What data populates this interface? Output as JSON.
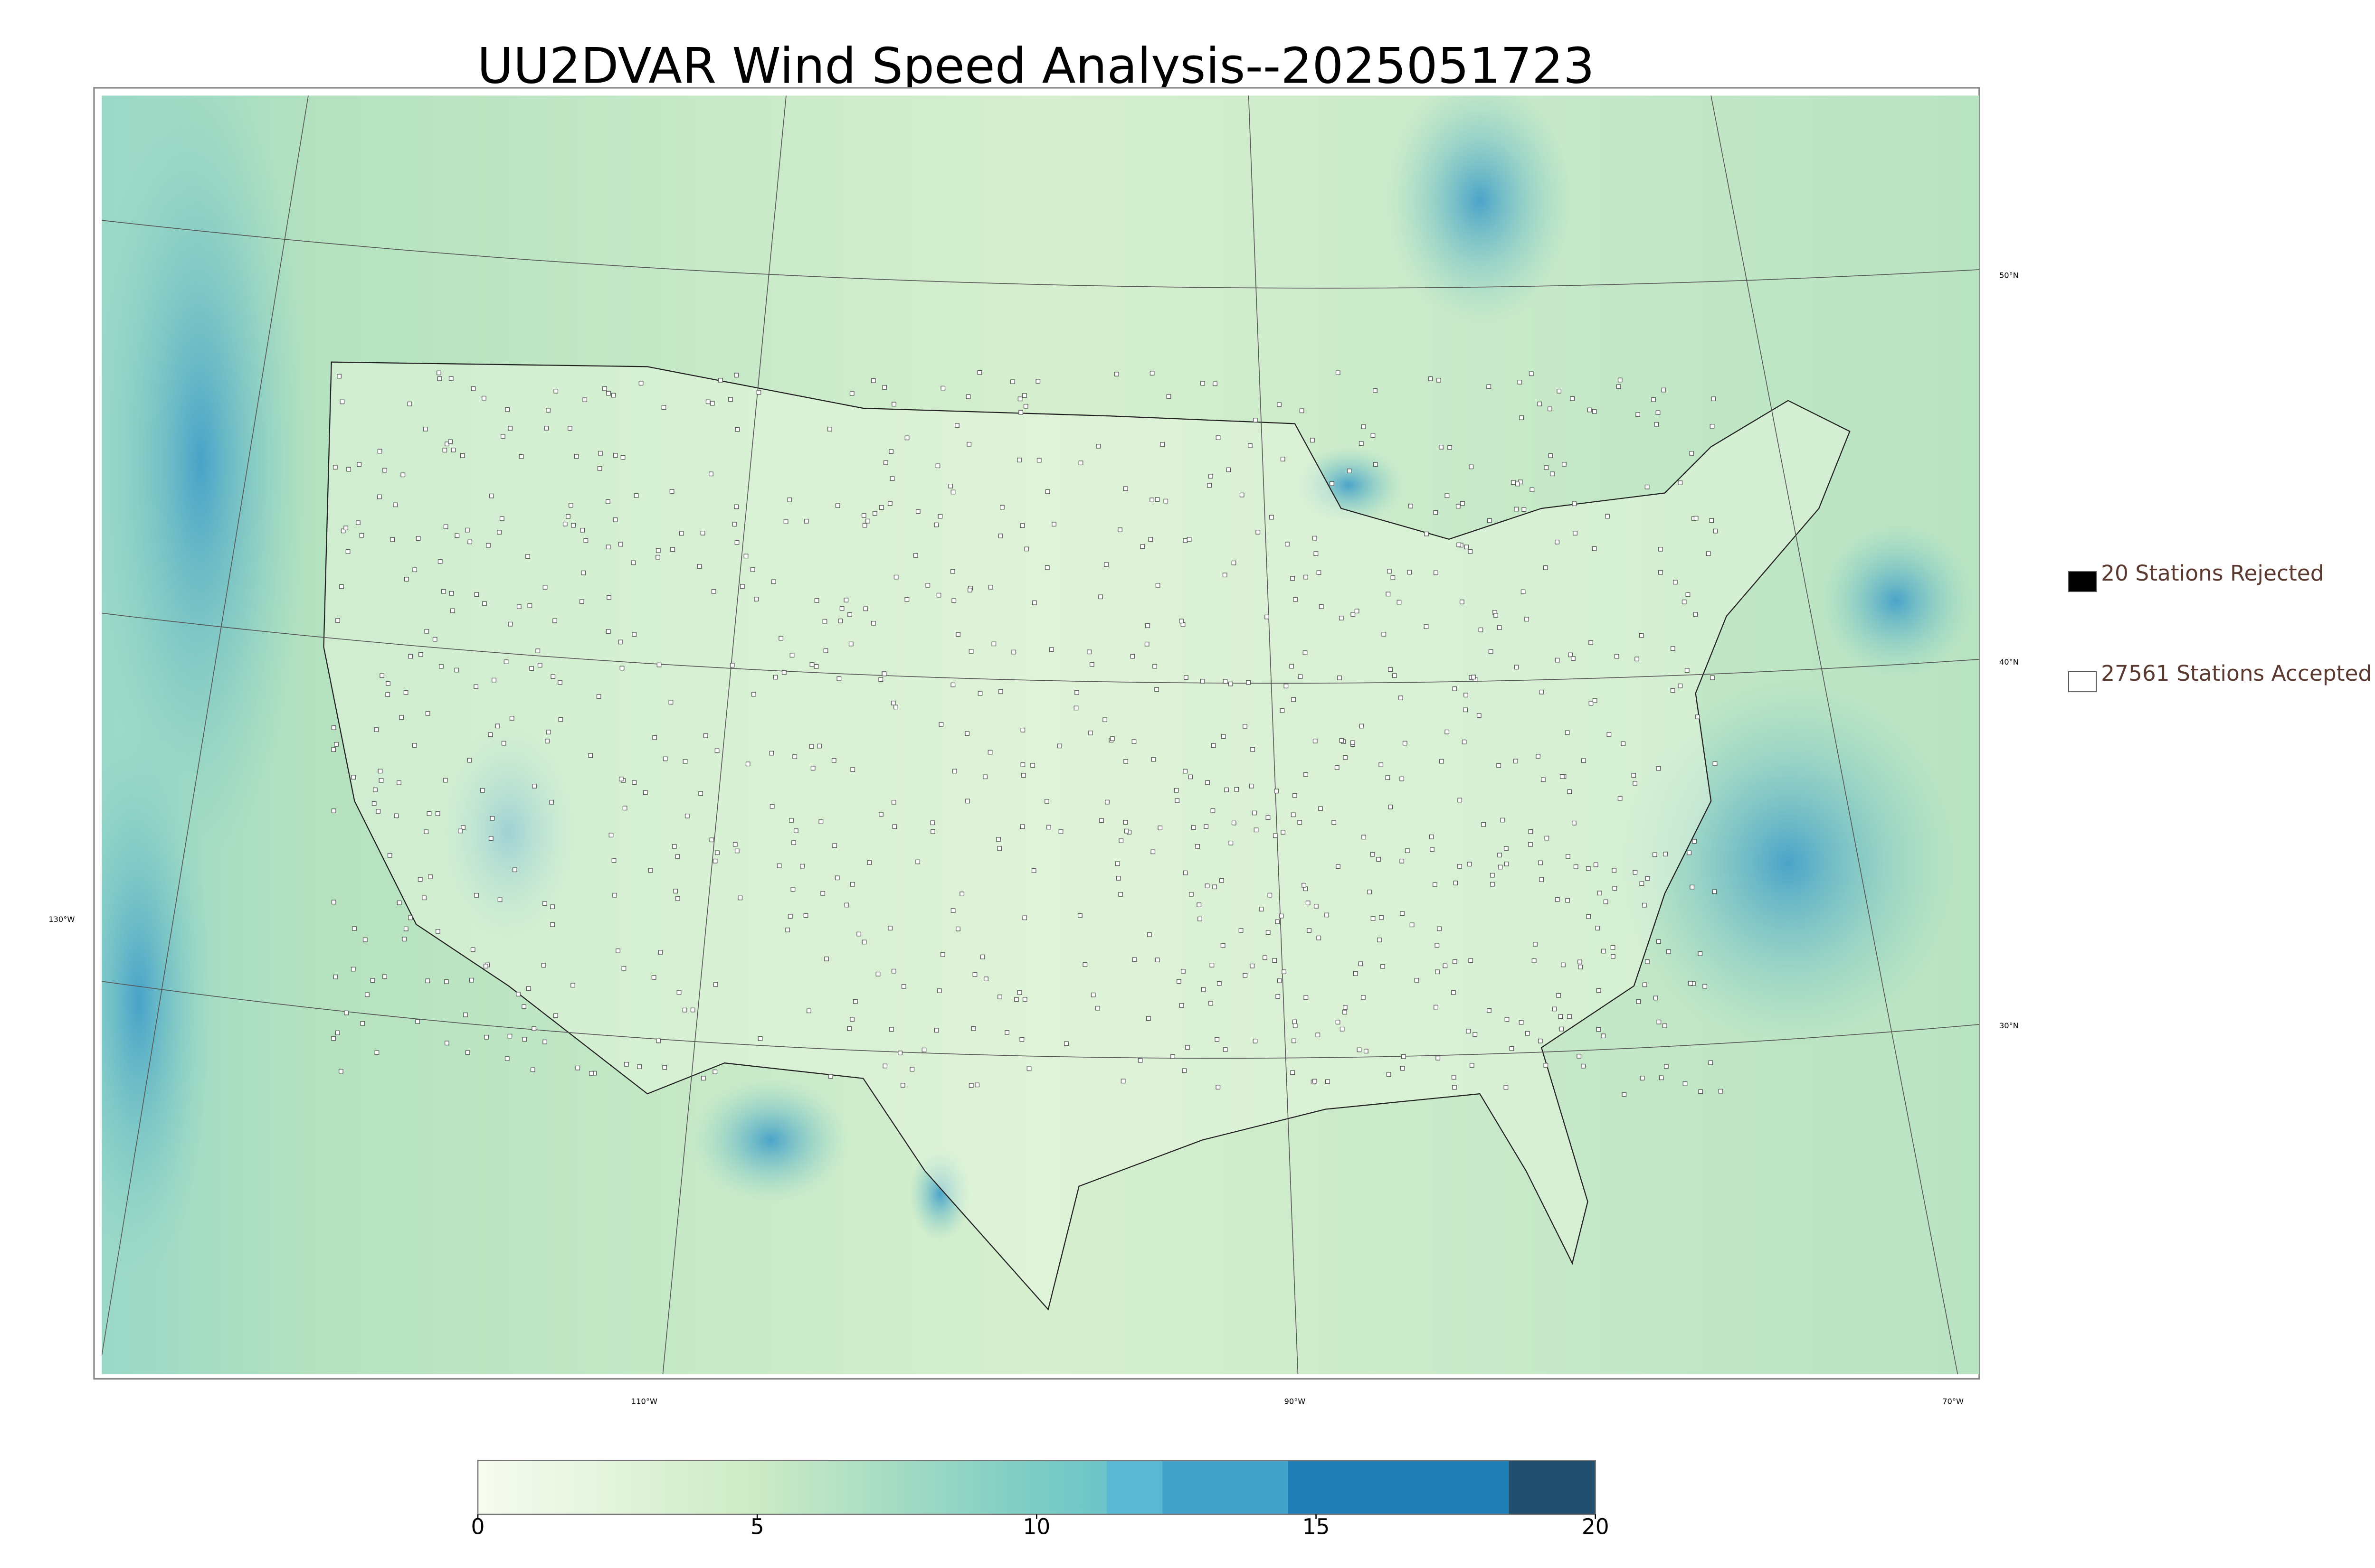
{
  "title": "UU2DVAR Wind Speed Analysis--2025051723",
  "legend": [
    {
      "label": "20 Stations Rejected",
      "fill": "#000000"
    },
    {
      "label": "27561 Stations Accepted",
      "fill": "#ffffff"
    }
  ],
  "graticule_labels": {
    "latitudes": [
      "50°N",
      "40°N",
      "30°N"
    ],
    "longitudes": [
      "130°W",
      "110°W",
      "90°W",
      "70°W"
    ]
  },
  "colorbar": {
    "lim": [
      0,
      20
    ],
    "ticks": [
      0,
      5,
      10,
      15,
      20
    ],
    "gradient": [
      {
        "value": 0,
        "color": "#f7fcf0"
      },
      {
        "value": 5,
        "color": "#ccebc5"
      },
      {
        "value": 10,
        "color": "#7bccc4"
      },
      {
        "value": 11.25,
        "color": "#6cc5c8"
      }
    ],
    "bands": [
      {
        "from": 11.25,
        "to": 12.25,
        "color": "#5ab8d2"
      },
      {
        "from": 12.25,
        "to": 14.5,
        "color": "#43a2ca"
      },
      {
        "from": 14.5,
        "to": 18.45,
        "color": "#1f7db6"
      },
      {
        "from": 18.45,
        "to": 20,
        "color": "#224e6e"
      }
    ]
  }
}
